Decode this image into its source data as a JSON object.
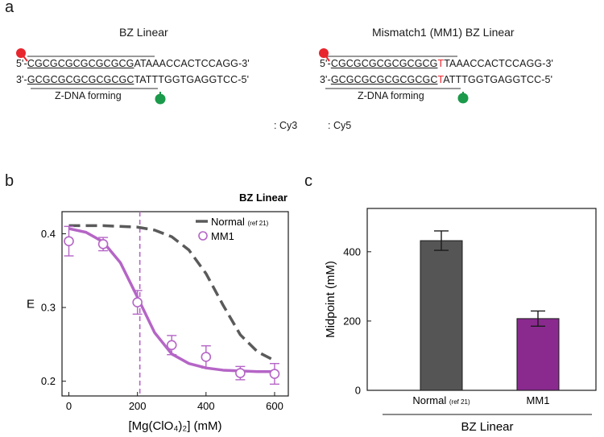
{
  "panel_a": {
    "letter": "a",
    "left": {
      "title": "BZ Linear",
      "top_strand": [
        "5'-",
        "CGCGCGCGCGCGCG",
        "ATAAACCACTCCAGG-3'"
      ],
      "bottom_strand": [
        "3'-",
        "GCGCGCGCGCGCGC",
        "TATTTGGTGAGGTCC-5'"
      ],
      "zdna_label": "Z-DNA forming"
    },
    "right": {
      "title": "Mismatch1 (MM1) BZ Linear",
      "top_strand": [
        "5'-",
        "CGCGCGCGCGCGCG",
        "T",
        "TAAACCACTCCAGG-3'"
      ],
      "bottom_strand": [
        "3'-",
        "GCGCGCGCGCGCGC",
        "T",
        "ATTTGGTGAGGTCC-5'"
      ],
      "zdna_label": "Z-DNA forming"
    },
    "dye_legend": [
      {
        "label": ": Cy3",
        "color": "#1a9a4a"
      },
      {
        "label": ": Cy5",
        "color": "#e8262d"
      }
    ],
    "mismatch_color": "#e8262d"
  },
  "chart_data": [
    {
      "panel": "b",
      "type": "line",
      "title": "BZ Linear",
      "xlabel": "[Mg(ClO₄)₂] (mM)",
      "ylabel": "E",
      "xlim": [
        -20,
        640
      ],
      "ylim": [
        0.18,
        0.43
      ],
      "xticks": [
        0,
        200,
        400,
        600
      ],
      "yticks": [
        0.2,
        0.3,
        0.4
      ],
      "ytick_labels": [
        "0.2",
        "0.3",
        "0.4"
      ],
      "vline_x": 207,
      "series": [
        {
          "name": "Normal",
          "name_suffix": "(ref 21)",
          "style": "dashed",
          "color": "#5a5a5a",
          "x": [
            0,
            100,
            200,
            250,
            300,
            350,
            400,
            450,
            500,
            550,
            600
          ],
          "y": [
            0.411,
            0.411,
            0.409,
            0.405,
            0.396,
            0.378,
            0.346,
            0.303,
            0.263,
            0.24,
            0.228
          ]
        },
        {
          "name": "MM1",
          "style": "solid-fit-with-points",
          "color": "#b565c6",
          "x": [
            0,
            100,
            200,
            300,
            400,
            500,
            600
          ],
          "y": [
            0.39,
            0.386,
            0.307,
            0.249,
            0.233,
            0.211,
            0.21
          ],
          "err": [
            0.02,
            0.009,
            0.016,
            0.013,
            0.015,
            0.009,
            0.014
          ],
          "fit_x": [
            0,
            50,
            100,
            150,
            200,
            250,
            300,
            350,
            400,
            450,
            500,
            550,
            600
          ],
          "fit_y": [
            0.407,
            0.402,
            0.389,
            0.361,
            0.314,
            0.266,
            0.237,
            0.224,
            0.218,
            0.215,
            0.214,
            0.213,
            0.213
          ]
        }
      ]
    },
    {
      "panel": "c",
      "type": "bar",
      "title": "",
      "categories": [
        "Normal",
        "MM1"
      ],
      "category_suffix": [
        "(ref 21)",
        ""
      ],
      "values": [
        432,
        207
      ],
      "errors": [
        28,
        22
      ],
      "colors": [
        "#555555",
        "#8a2a8f"
      ],
      "ylabel": "Midpoint (mM)",
      "group_label": "BZ Linear",
      "ylim": [
        0,
        525
      ],
      "yticks": [
        0,
        200,
        400
      ]
    }
  ],
  "panel_b_letter": "b",
  "panel_c_letter": "c"
}
